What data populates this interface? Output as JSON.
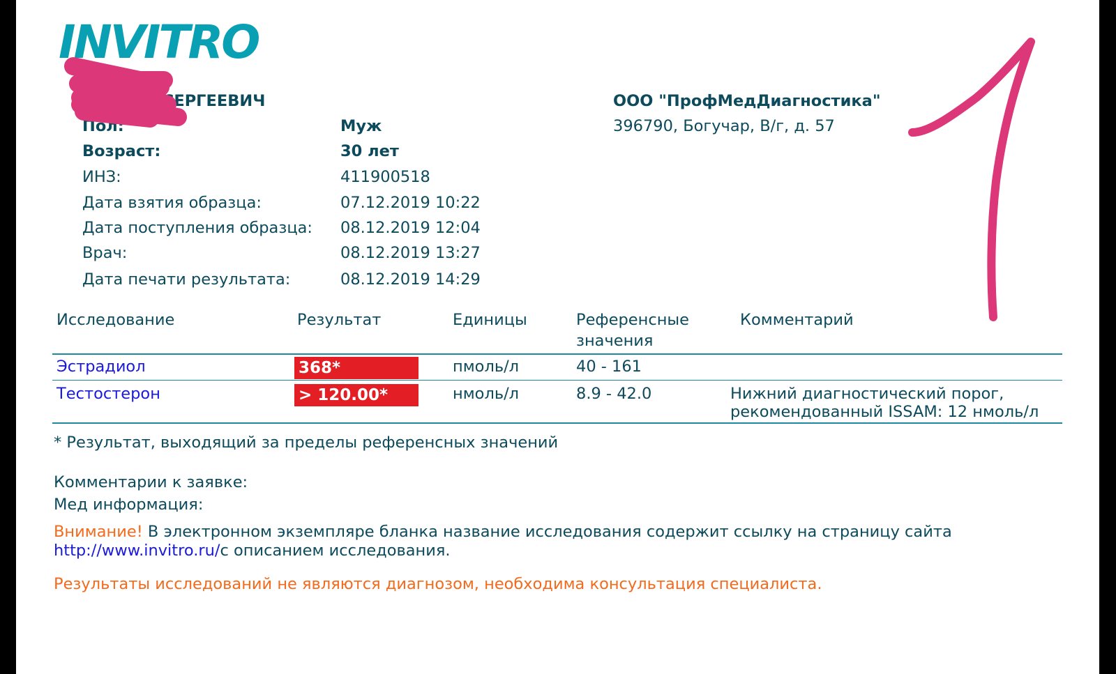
{
  "logo": "INVITRO",
  "patient": {
    "name": "АНДРЕЙ СЕРГЕЕВИЧ",
    "fields": [
      {
        "label": "Пол:",
        "value": "Муж",
        "bold": true
      },
      {
        "label": "Возраст:",
        "value": "30 лет",
        "bold": true
      },
      {
        "label": "ИНЗ:",
        "value": "411900518"
      },
      {
        "label": "Дата взятия образца:",
        "value": "07.12.2019 10:22"
      },
      {
        "label": "Дата поступления образца:",
        "value": "08.12.2019 12:04"
      },
      {
        "label": "Врач:",
        "value": "08.12.2019 13:27"
      },
      {
        "label": "Дата печати результата:",
        "value": "08.12.2019 14:29"
      }
    ]
  },
  "lab": {
    "name": "ООО \"ПрофМедДиагностика\"",
    "address": "396790, Богучар, В/г, д. 57"
  },
  "table": {
    "headers": [
      "Исследование",
      "Результат",
      "Единицы",
      "Референсные",
      "значения",
      "Комментарий"
    ],
    "rows": [
      {
        "test": "Эстрадиол",
        "result": "368*",
        "units": "пмоль/л",
        "reference": "40 - 161",
        "comment1": "",
        "comment2": ""
      },
      {
        "test": "Тестостерон",
        "result": "> 120.00*",
        "units": "нмоль/л",
        "reference": "8.9 - 42.0",
        "comment1": "Нижний диагностический порог,",
        "comment2": "рекомендованный ISSAM: 12 нмоль/л"
      }
    ]
  },
  "footnote": "* Результат, выходящий за пределы референсных значений",
  "order_comments": "Комментарии к заявке:",
  "med_info": "Мед информация:",
  "attention": {
    "label": "Внимание!",
    "text": " В электронном экземпляре бланка название исследования содержит ссылку на страницу сайта",
    "link": "http://www.invitro.ru/",
    "after": "с описанием исследования."
  },
  "disclaimer": "Результаты исследований не являются диагнозом, необходима консультация специалиста.",
  "colors": {
    "text": "#0d4b5c",
    "logo": "#0aa0b4",
    "flag": "#e31e24",
    "link": "#1a1adc",
    "warning": "#f26b1d",
    "annotation": "#dc3778"
  },
  "annotation": "1"
}
